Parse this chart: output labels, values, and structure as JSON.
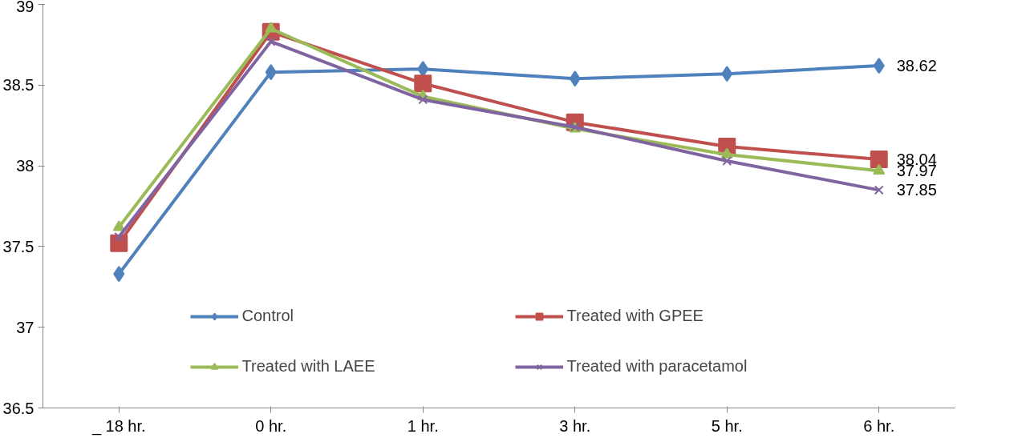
{
  "chart_data": {
    "type": "line",
    "categories": [
      "_ 18 hr.",
      "0 hr.",
      "1 hr.",
      "3 hr.",
      "5 hr.",
      "6 hr."
    ],
    "ylim": [
      36.5,
      39
    ],
    "yticks": [
      36.5,
      37,
      37.5,
      38,
      38.5,
      39
    ],
    "grid": false,
    "legend": "bottom",
    "series": [
      {
        "name": "Control",
        "color": "#4f81bd",
        "marker": "diamond",
        "values": [
          37.33,
          38.58,
          38.6,
          38.54,
          38.57,
          38.62
        ],
        "value_labels": [
          null,
          null,
          null,
          null,
          null,
          "38.62"
        ]
      },
      {
        "name": "Treated with GPEE",
        "color": "#c0504d",
        "marker": "square",
        "values": [
          37.52,
          38.83,
          38.51,
          38.27,
          38.12,
          38.04
        ],
        "value_labels": [
          null,
          null,
          null,
          null,
          null,
          "38.04"
        ]
      },
      {
        "name": "Treated with LAEE",
        "color": "#9bbb59",
        "marker": "triangle",
        "values": [
          37.62,
          38.85,
          38.43,
          38.23,
          38.07,
          37.97
        ],
        "value_labels": [
          null,
          null,
          null,
          null,
          null,
          "37.97"
        ]
      },
      {
        "name": "Treated with paracetamol",
        "color": "#8064a2",
        "marker": "cross",
        "values": [
          37.56,
          38.77,
          38.41,
          38.24,
          38.03,
          37.85
        ],
        "value_labels": [
          null,
          null,
          null,
          null,
          null,
          "37.85"
        ]
      }
    ]
  }
}
